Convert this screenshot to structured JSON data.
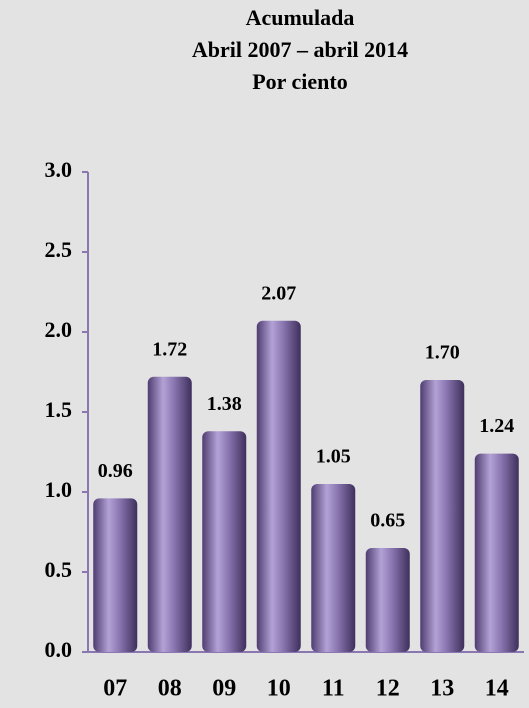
{
  "chart_data": {
    "type": "bar",
    "title": "Acumulada",
    "subtitle": "Abril 2007 – abril 2014",
    "y_label": "Por ciento",
    "categories": [
      "07",
      "08",
      "09",
      "10",
      "11",
      "12",
      "13",
      "14"
    ],
    "values": [
      0.96,
      1.72,
      1.38,
      2.07,
      1.05,
      0.65,
      1.7,
      1.24
    ],
    "value_labels": [
      "0.96",
      "1.72",
      "1.38",
      "2.07",
      "1.05",
      "0.65",
      "1.70",
      "1.24"
    ],
    "color": "#8a76b0",
    "ylim": [
      0,
      3
    ],
    "yticks": [
      {
        "value": 0,
        "label": "0.0"
      },
      {
        "value": 0.5,
        "label": "0.5"
      },
      {
        "value": 1,
        "label": "1.0"
      },
      {
        "value": 1.5,
        "label": "1.5"
      },
      {
        "value": 2,
        "label": "2.0"
      },
      {
        "value": 2.5,
        "label": "2.5"
      },
      {
        "value": 3,
        "label": "3.0"
      }
    ],
    "grid": false
  }
}
